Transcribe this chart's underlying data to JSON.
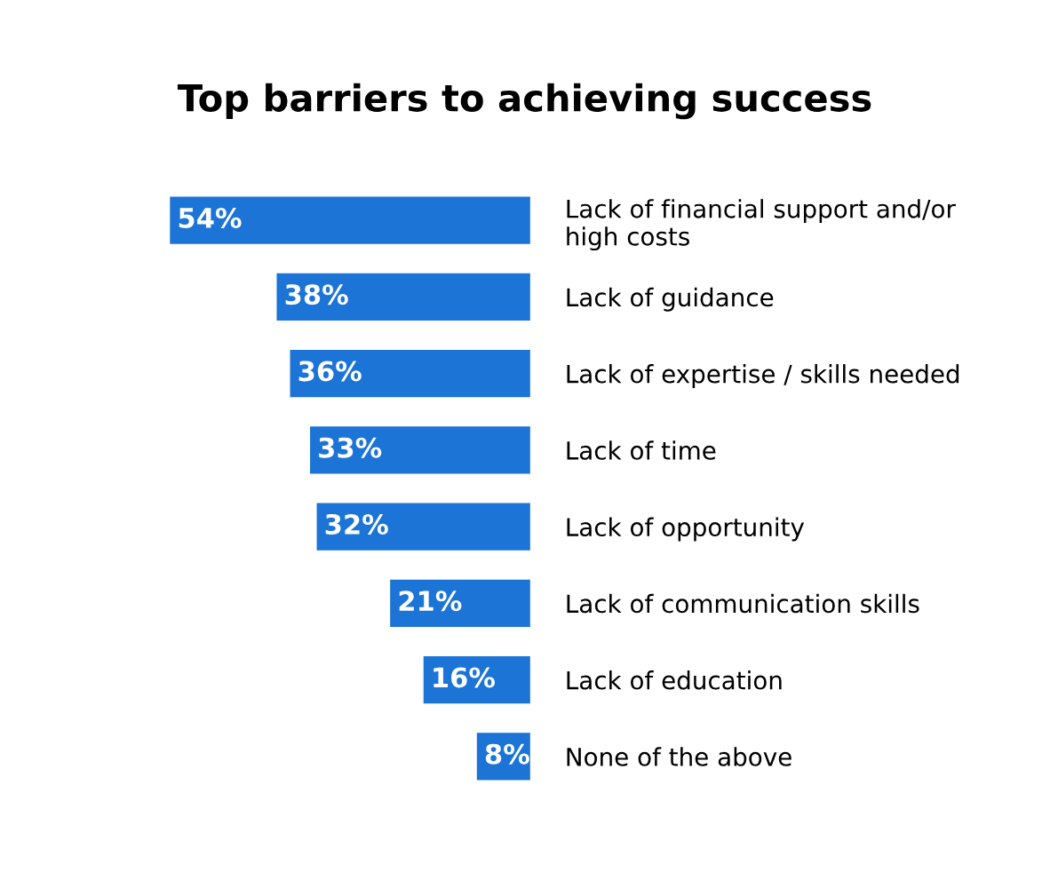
{
  "chart_data": {
    "type": "bar",
    "orientation": "horizontal",
    "title": "Top barriers to achieving success",
    "categories": [
      "Lack of financial support and/or\nhigh costs",
      "Lack of guidance",
      "Lack of expertise / skills needed",
      "Lack of time",
      "Lack of opportunity",
      "Lack of communication skills",
      "Lack of education",
      "None of the above"
    ],
    "values": [
      54,
      38,
      36,
      33,
      32,
      21,
      16,
      8
    ],
    "value_labels": [
      "54%",
      "38%",
      "36%",
      "33%",
      "32%",
      "21%",
      "16%",
      "8%"
    ],
    "color": "#1b74d6",
    "grid": false,
    "legend": false
  }
}
